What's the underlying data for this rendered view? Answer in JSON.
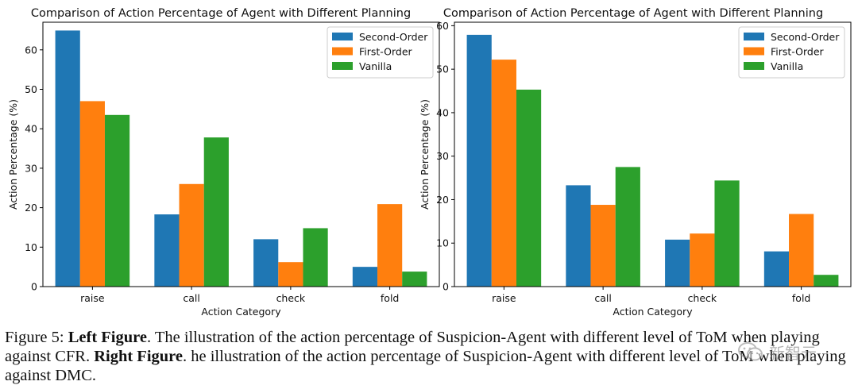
{
  "chart_data": [
    {
      "type": "bar",
      "title": "Comparison of Action Percentage of Agent with Different Planning",
      "xlabel": "Action Category",
      "ylabel": "Action Percentage (%)",
      "categories": [
        "raise",
        "call",
        "check",
        "fold"
      ],
      "ylim": [
        0,
        67
      ],
      "yticks": [
        0,
        10,
        20,
        30,
        40,
        50,
        60
      ],
      "legend_position": "top-right",
      "series": [
        {
          "name": "Second-Order",
          "color": "#1f77b4",
          "values": [
            64.9,
            18.3,
            12.0,
            5.0
          ]
        },
        {
          "name": "First-Order",
          "color": "#ff7f0e",
          "values": [
            47.0,
            26.0,
            6.2,
            20.9
          ]
        },
        {
          "name": "Vanilla",
          "color": "#2ca02c",
          "values": [
            43.5,
            37.8,
            14.8,
            3.8
          ]
        }
      ]
    },
    {
      "type": "bar",
      "title": "Comparison of Action Percentage of Agent with Different Planning",
      "xlabel": "Action Category",
      "ylabel": "Action Percentage (%)",
      "categories": [
        "raise",
        "call",
        "check",
        "fold"
      ],
      "ylim": [
        0,
        60.8
      ],
      "yticks": [
        0,
        10,
        20,
        30,
        40,
        50,
        60
      ],
      "legend_position": "top-right",
      "series": [
        {
          "name": "Second-Order",
          "color": "#1f77b4",
          "values": [
            57.9,
            23.3,
            10.8,
            8.1
          ]
        },
        {
          "name": "First-Order",
          "color": "#ff7f0e",
          "values": [
            52.2,
            18.8,
            12.2,
            16.7
          ]
        },
        {
          "name": "Vanilla",
          "color": "#2ca02c",
          "values": [
            45.3,
            27.5,
            24.4,
            2.7
          ]
        }
      ]
    }
  ],
  "caption": {
    "p1": "Figure 5: ",
    "b1": "Left Figure",
    "p2": ". The illustration of the action percentage of Suspicion-Agent  with different level of ToM when playing against CFR. ",
    "b2": "Right Figure",
    "p3": ". he illustration of the action percentage of Suspicion-Agent  with different level of ToM when playing against DMC."
  },
  "watermark": {
    "text": "新智元",
    "icon": "wechat-icon"
  }
}
